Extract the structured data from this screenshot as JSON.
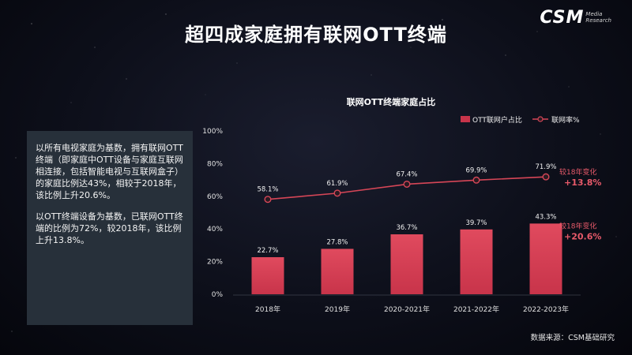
{
  "page": {
    "title": "超四成家庭拥有联网OTT终端",
    "logo_main": "CSM",
    "logo_sub_line1": "Media",
    "logo_sub_line2": "Research",
    "description": [
      "以所有电视家庭为基数，拥有联网OTT终端（即家庭中OTT设备与家庭互联网相连接，包括智能电视与互联网盒子）的家庭比例达43%，相较于2018年，该比例上升20.6%。",
      "以OTT终端设备为基数，已联网OTT终端的比例为72%，较2018年，该比例上升13.8%。"
    ],
    "source": "数据来源：CSM基础研究"
  },
  "colors": {
    "bar": "#c8344a",
    "bar_light": "#e04a5e",
    "line": "#d64657",
    "axis_text": "#e0e0e0",
    "change_label": "#e85a6a"
  },
  "chart_data": {
    "type": "bar+line",
    "title": "联网OTT终端家庭占比",
    "categories": [
      "2018年",
      "2019年",
      "2020-2021年",
      "2021-2022年",
      "2022-2023年"
    ],
    "yticks": [
      "0%",
      "20%",
      "40%",
      "60%",
      "80%",
      "100%"
    ],
    "ylim": [
      0,
      100
    ],
    "grid": false,
    "legend_position": "top-right",
    "series": [
      {
        "name": "OTT联网户占比",
        "type": "bar",
        "values": [
          22.7,
          27.8,
          36.7,
          39.7,
          43.3
        ],
        "labels": [
          "22.7%",
          "27.8%",
          "36.7%",
          "39.7%",
          "43.3%"
        ]
      },
      {
        "name": "联网率%",
        "type": "line",
        "values": [
          58.1,
          61.9,
          67.4,
          69.9,
          71.9
        ],
        "labels": [
          "58.1%",
          "61.9%",
          "67.4%",
          "69.9%",
          "71.9%"
        ]
      }
    ],
    "annotations": [
      {
        "label": "较18年变化",
        "value": "+13.8%",
        "series": "联网率%"
      },
      {
        "label": "较18年变化",
        "value": "+20.6%",
        "series": "OTT联网户占比"
      }
    ]
  }
}
